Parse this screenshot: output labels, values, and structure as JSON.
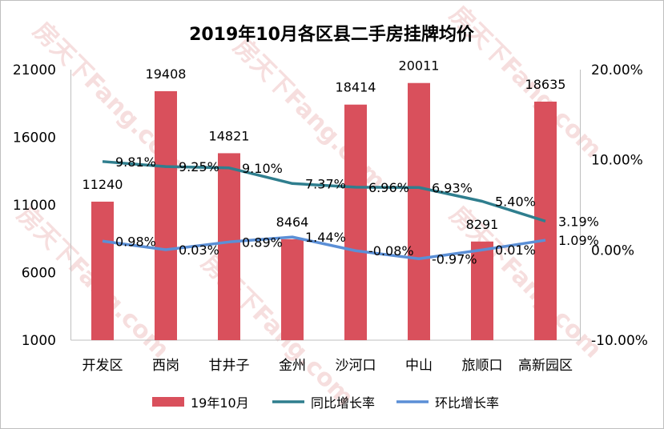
{
  "chart_data": {
    "type": "bar+line",
    "title": "2019年10月各区县二手房挂牌均价",
    "categories": [
      "开发区",
      "西岗",
      "甘井子",
      "金州",
      "沙河口",
      "中山",
      "旅顺口",
      "高新园区"
    ],
    "series": [
      {
        "name": "19年10月",
        "type": "bar",
        "axis": "left",
        "color": "#d9505c",
        "values": [
          11240,
          19408,
          14821,
          8464,
          18414,
          20011,
          8291,
          18635
        ],
        "labels": [
          "11240",
          "19408",
          "14821",
          "8464",
          "18414",
          "20011",
          "8291",
          "18635"
        ]
      },
      {
        "name": "同比增长率",
        "type": "line",
        "axis": "right",
        "color": "#2f7e8e",
        "values": [
          9.81,
          9.25,
          9.1,
          7.37,
          6.96,
          6.93,
          5.4,
          3.19
        ],
        "labels": [
          "9.81%",
          "9.25%",
          "9.10%",
          "7.37%",
          "6.96%",
          "6.93%",
          "5.40%",
          "3.19%"
        ]
      },
      {
        "name": "环比增长率",
        "type": "line",
        "axis": "right",
        "color": "#5b8fd6",
        "values": [
          0.98,
          0.03,
          0.89,
          1.44,
          -0.08,
          -0.97,
          0.01,
          1.09
        ],
        "labels": [
          "0.98%",
          "0.03%",
          "0.89%",
          "1.44%",
          "-0.08%",
          "-0.97%",
          "0.01%",
          "1.09%"
        ]
      }
    ],
    "y_left": {
      "range": [
        1000,
        21000
      ],
      "ticks": [
        "21000",
        "16000",
        "11000",
        "6000",
        "1000"
      ]
    },
    "y_right": {
      "range": [
        -10,
        20
      ],
      "ticks": [
        "20.00%",
        "10.00%",
        "0.00%",
        "-10.00%"
      ]
    },
    "grid": false,
    "legend": "bottom"
  },
  "watermark": "房天下Fang.com"
}
